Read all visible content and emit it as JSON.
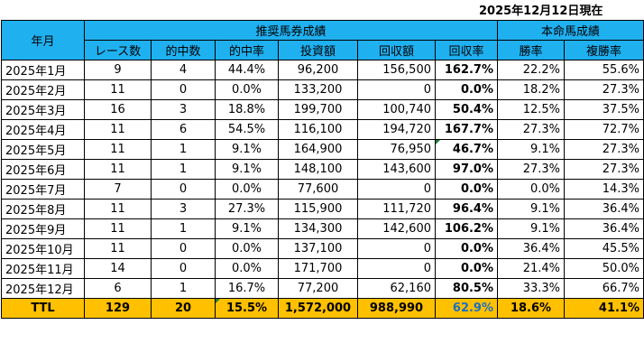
{
  "date_label": "2025年12月12日現在",
  "headers": {
    "month": "年月",
    "group_recommended": "推奨馬券成績",
    "group_favorite": "本命馬成績",
    "cols": [
      "レース数",
      "的中数",
      "的中率",
      "投資額",
      "回収額",
      "回収率",
      "勝率",
      "複勝率"
    ]
  },
  "rows": [
    {
      "month": "2025年1月",
      "races": "9",
      "hits": "4",
      "hit_rate": "44.4%",
      "invest": "96,200",
      "return": "156,500",
      "return_rate": "162.7%",
      "positive": true,
      "win_rate": "22.2%",
      "place_rate": "55.6%"
    },
    {
      "month": "2025年2月",
      "races": "11",
      "hits": "0",
      "hit_rate": "0.0%",
      "invest": "133,200",
      "return": "0",
      "return_rate": "0.0%",
      "positive": false,
      "win_rate": "18.2%",
      "place_rate": "27.3%"
    },
    {
      "month": "2025年3月",
      "races": "16",
      "hits": "3",
      "hit_rate": "18.8%",
      "invest": "199,700",
      "return": "100,740",
      "return_rate": "50.4%",
      "positive": false,
      "win_rate": "12.5%",
      "place_rate": "37.5%"
    },
    {
      "month": "2025年4月",
      "races": "11",
      "hits": "6",
      "hit_rate": "54.5%",
      "invest": "116,100",
      "return": "194,720",
      "return_rate": "167.7%",
      "positive": true,
      "win_rate": "27.3%",
      "place_rate": "72.7%"
    },
    {
      "month": "2025年5月",
      "races": "11",
      "hits": "1",
      "hit_rate": "9.1%",
      "invest": "164,900",
      "return": "76,950",
      "return_rate": "46.7%",
      "positive": false,
      "win_rate": "9.1%",
      "place_rate": "27.3%"
    },
    {
      "month": "2025年6月",
      "races": "11",
      "hits": "1",
      "hit_rate": "9.1%",
      "invest": "148,100",
      "return": "143,600",
      "return_rate": "97.0%",
      "positive": false,
      "win_rate": "27.3%",
      "place_rate": "27.3%"
    },
    {
      "month": "2025年7月",
      "races": "7",
      "hits": "0",
      "hit_rate": "0.0%",
      "invest": "77,600",
      "return": "0",
      "return_rate": "0.0%",
      "positive": false,
      "win_rate": "0.0%",
      "place_rate": "14.3%"
    },
    {
      "month": "2025年8月",
      "races": "11",
      "hits": "3",
      "hit_rate": "27.3%",
      "invest": "115,900",
      "return": "111,720",
      "return_rate": "96.4%",
      "positive": false,
      "win_rate": "9.1%",
      "place_rate": "36.4%"
    },
    {
      "month": "2025年9月",
      "races": "11",
      "hits": "1",
      "hit_rate": "9.1%",
      "invest": "134,300",
      "return": "142,600",
      "return_rate": "106.2%",
      "positive": true,
      "win_rate": "9.1%",
      "place_rate": "36.4%"
    },
    {
      "month": "2025年10月",
      "races": "11",
      "hits": "0",
      "hit_rate": "0.0%",
      "invest": "137,100",
      "return": "0",
      "return_rate": "0.0%",
      "positive": false,
      "win_rate": "36.4%",
      "place_rate": "45.5%"
    },
    {
      "month": "2025年11月",
      "races": "14",
      "hits": "0",
      "hit_rate": "0.0%",
      "invest": "171,700",
      "return": "0",
      "return_rate": "0.0%",
      "positive": false,
      "win_rate": "21.4%",
      "place_rate": "50.0%"
    },
    {
      "month": "2025年12月",
      "races": "6",
      "hits": "1",
      "hit_rate": "16.7%",
      "invest": "77,200",
      "return": "62,160",
      "return_rate": "80.5%",
      "positive": false,
      "win_rate": "33.3%",
      "place_rate": "66.7%"
    }
  ],
  "total": {
    "label": "TTL",
    "races": "129",
    "hits": "20",
    "hit_rate": "15.5%",
    "invest": "1,572,000",
    "return": "988,990",
    "return_rate": "62.9%",
    "win_rate": "18.6%",
    "place_rate": "41.1%"
  },
  "colors": {
    "header_bg": "#1fb0f0",
    "total_bg": "#ffc000",
    "positive_rate": "#ff0000",
    "negative_rate": "#1e6fc0",
    "comment_marker": "#1a7f37"
  }
}
